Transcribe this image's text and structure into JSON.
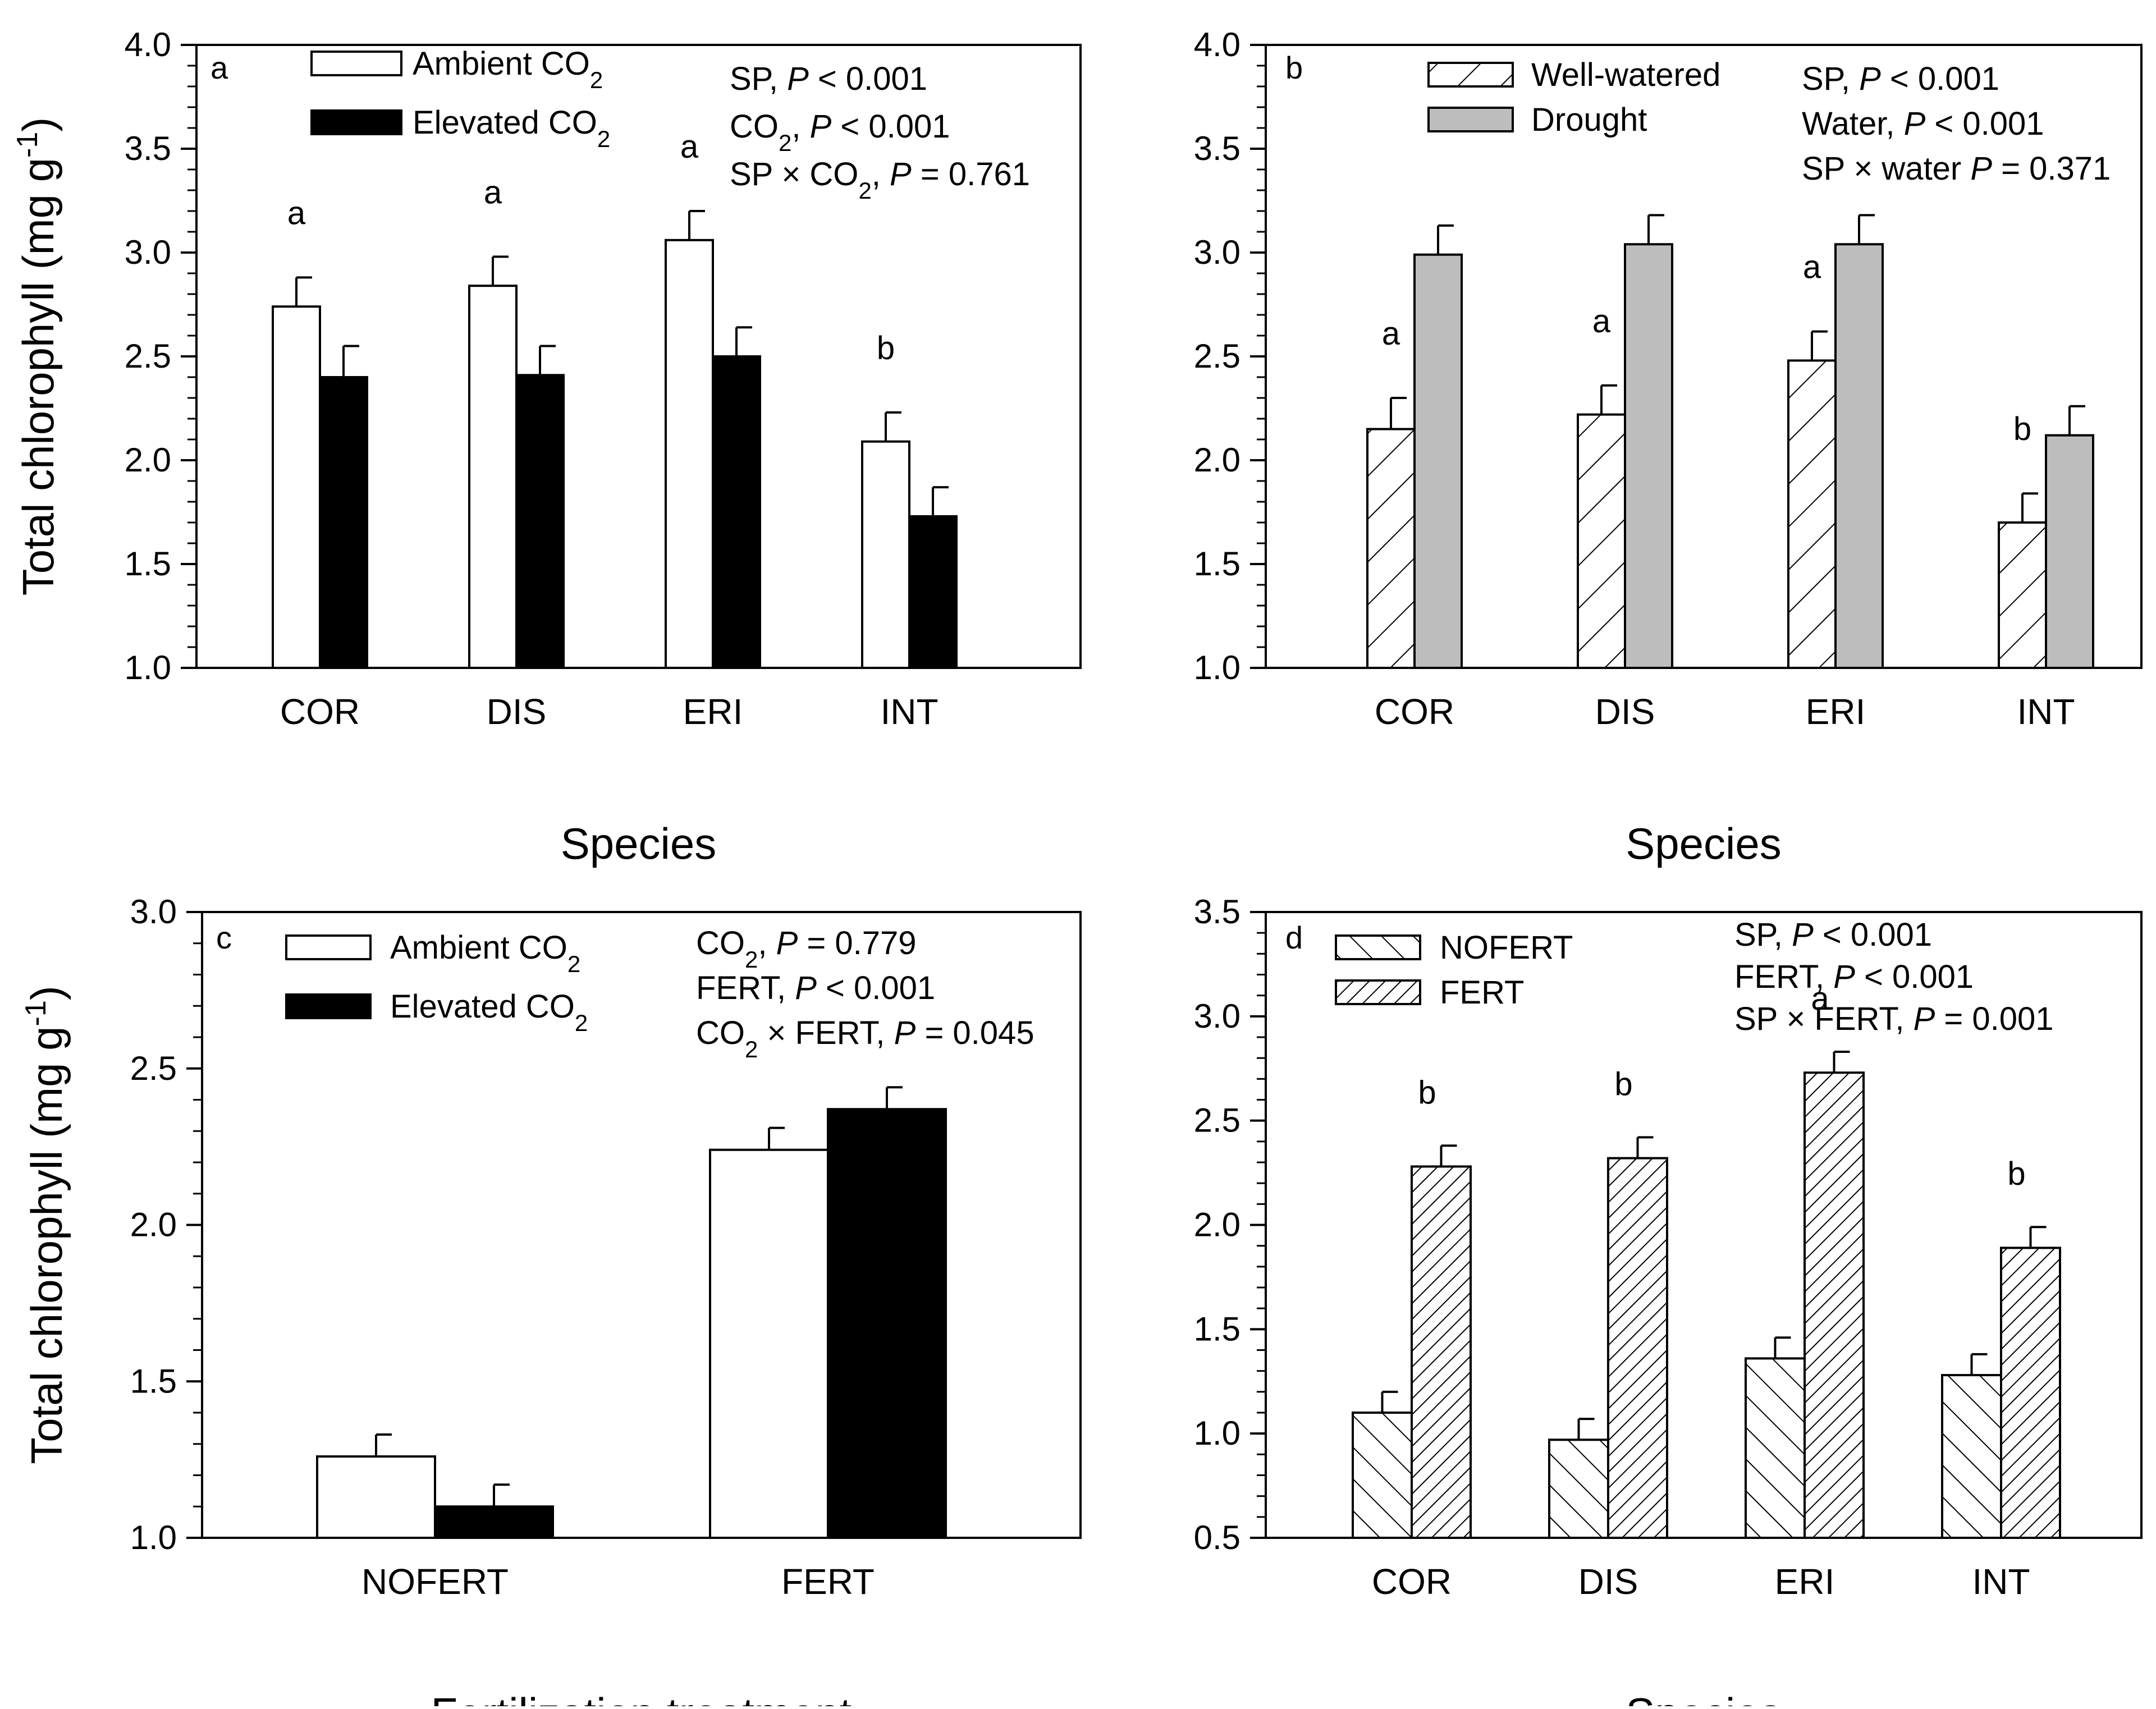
{
  "chart_data": [
    {
      "type": "bar",
      "panel": "a",
      "ylabel_main": "Total chlorophyll (mg g",
      "ylabel_sup": "-1",
      "ylabel_close": ")",
      "xlabel": "Species",
      "ylim": [
        1.0,
        4.0
      ],
      "yticks": [
        "1.0",
        "1.5",
        "2.0",
        "2.5",
        "3.0",
        "3.5",
        "4.0"
      ],
      "yticks_values": [
        1.0,
        1.5,
        2.0,
        2.5,
        3.0,
        3.5,
        4.0
      ],
      "categories": [
        "COR",
        "DIS",
        "ERI",
        "INT"
      ],
      "series": [
        {
          "name": "Ambient CO",
          "sub": "2",
          "style": "open",
          "values": [
            2.74,
            2.84,
            3.06,
            2.09
          ],
          "errors": [
            0.14,
            0.14,
            0.14,
            0.14
          ]
        },
        {
          "name": "Elevated CO",
          "sub": "2",
          "style": "solid",
          "values": [
            2.4,
            2.41,
            2.5,
            1.73
          ],
          "errors": [
            0.15,
            0.14,
            0.14,
            0.14
          ]
        }
      ],
      "group_letters": [
        "a",
        "a",
        "a",
        "b"
      ],
      "stats": [
        {
          "parts": [
            {
              "t": "SP, "
            },
            {
              "t": "P",
              "i": true
            },
            {
              "t": " < 0.001"
            }
          ]
        },
        {
          "parts": [
            {
              "t": "CO"
            },
            {
              "t": "2",
              "sub": true
            },
            {
              "t": ", "
            },
            {
              "t": "P",
              "i": true
            },
            {
              "t": "  < 0.001"
            }
          ]
        },
        {
          "parts": [
            {
              "t": "SP × CO"
            },
            {
              "t": "2",
              "sub": true
            },
            {
              "t": ", "
            },
            {
              "t": "P",
              "i": true
            },
            {
              "t": " = 0.761"
            }
          ]
        }
      ]
    },
    {
      "type": "bar",
      "panel": "b",
      "xlabel": "Species",
      "ylim": [
        1.0,
        4.0
      ],
      "yticks": [
        "1.0",
        "1.5",
        "2.0",
        "2.5",
        "3.0",
        "3.5",
        "4.0"
      ],
      "yticks_values": [
        1.0,
        1.5,
        2.0,
        2.5,
        3.0,
        3.5,
        4.0
      ],
      "categories": [
        "COR",
        "DIS",
        "ERI",
        "INT"
      ],
      "series": [
        {
          "name": "Well-watered",
          "style": "hatch-fwd-sparse",
          "values": [
            2.15,
            2.22,
            2.48,
            1.7
          ],
          "errors": [
            0.15,
            0.14,
            0.14,
            0.14
          ]
        },
        {
          "name": "Drought",
          "style": "gray",
          "values": [
            2.99,
            3.04,
            3.04,
            2.12
          ],
          "errors": [
            0.14,
            0.14,
            0.14,
            0.14
          ]
        }
      ],
      "group_letters": [
        "a",
        "a",
        "a",
        "b"
      ],
      "stats": [
        {
          "parts": [
            {
              "t": "SP, "
            },
            {
              "t": "P",
              "i": true
            },
            {
              "t": " < 0.001"
            }
          ]
        },
        {
          "parts": [
            {
              "t": "Water, "
            },
            {
              "t": "P",
              "i": true
            },
            {
              "t": " < 0.001"
            }
          ]
        },
        {
          "parts": [
            {
              "t": "SP × water "
            },
            {
              "t": "P",
              "i": true
            },
            {
              "t": " = 0.371"
            }
          ]
        }
      ]
    },
    {
      "type": "bar",
      "panel": "c",
      "ylabel_main": "Total chlorophyll (mg g",
      "ylabel_sup": "-1",
      "ylabel_close": ")",
      "xlabel": "Fertilization treatment",
      "ylim": [
        1.0,
        3.0
      ],
      "yticks": [
        "1.0",
        "1.5",
        "2.0",
        "2.5",
        "3.0"
      ],
      "yticks_values": [
        1.0,
        1.5,
        2.0,
        2.5,
        3.0
      ],
      "categories": [
        "NOFERT",
        "FERT"
      ],
      "series": [
        {
          "name": "Ambient CO",
          "sub": "2",
          "style": "open",
          "values": [
            1.26,
            2.24
          ],
          "errors": [
            0.07,
            0.07
          ]
        },
        {
          "name": "Elevated CO",
          "sub": "2",
          "style": "solid",
          "values": [
            1.1,
            2.37
          ],
          "errors": [
            0.07,
            0.07
          ]
        }
      ],
      "group_letters": [],
      "stats": [
        {
          "parts": [
            {
              "t": "CO"
            },
            {
              "t": "2",
              "sub": true
            },
            {
              "t": ", "
            },
            {
              "t": "P",
              "i": true
            },
            {
              "t": " = 0.779"
            }
          ]
        },
        {
          "parts": [
            {
              "t": "FERT, "
            },
            {
              "t": "P",
              "i": true
            },
            {
              "t": " < 0.001"
            }
          ]
        },
        {
          "parts": [
            {
              "t": "CO"
            },
            {
              "t": "2",
              "sub": true
            },
            {
              "t": " × FERT, "
            },
            {
              "t": "P",
              "i": true
            },
            {
              "t": " = 0.045"
            }
          ]
        }
      ]
    },
    {
      "type": "bar",
      "panel": "d",
      "xlabel": "Species",
      "ylim": [
        0.5,
        3.5
      ],
      "yticks": [
        "0.5",
        "1.0",
        "1.5",
        "2.0",
        "2.5",
        "3.0",
        "3.5"
      ],
      "yticks_values": [
        0.5,
        1.0,
        1.5,
        2.0,
        2.5,
        3.0,
        3.5
      ],
      "categories": [
        "COR",
        "DIS",
        "ERI",
        "INT"
      ],
      "series": [
        {
          "name": "NOFERT",
          "style": "hatch-back",
          "values": [
            1.1,
            0.97,
            1.36,
            1.28
          ],
          "errors": [
            0.1,
            0.1,
            0.1,
            0.1
          ]
        },
        {
          "name": "FERT",
          "style": "hatch-fwd-dense",
          "values": [
            2.28,
            2.32,
            2.73,
            1.89
          ],
          "errors": [
            0.1,
            0.1,
            0.1,
            0.1
          ]
        }
      ],
      "group_letters": [
        "b",
        "b",
        "a",
        "b"
      ],
      "stats": [
        {
          "parts": [
            {
              "t": "SP, "
            },
            {
              "t": "P",
              "i": true
            },
            {
              "t": " < 0.001"
            }
          ]
        },
        {
          "parts": [
            {
              "t": "FERT, "
            },
            {
              "t": "P",
              "i": true
            },
            {
              "t": " < 0.001"
            }
          ]
        },
        {
          "parts": [
            {
              "t": "SP × FERT, "
            },
            {
              "t": "P",
              "i": true
            },
            {
              "t": " = 0.001"
            }
          ]
        }
      ]
    }
  ]
}
